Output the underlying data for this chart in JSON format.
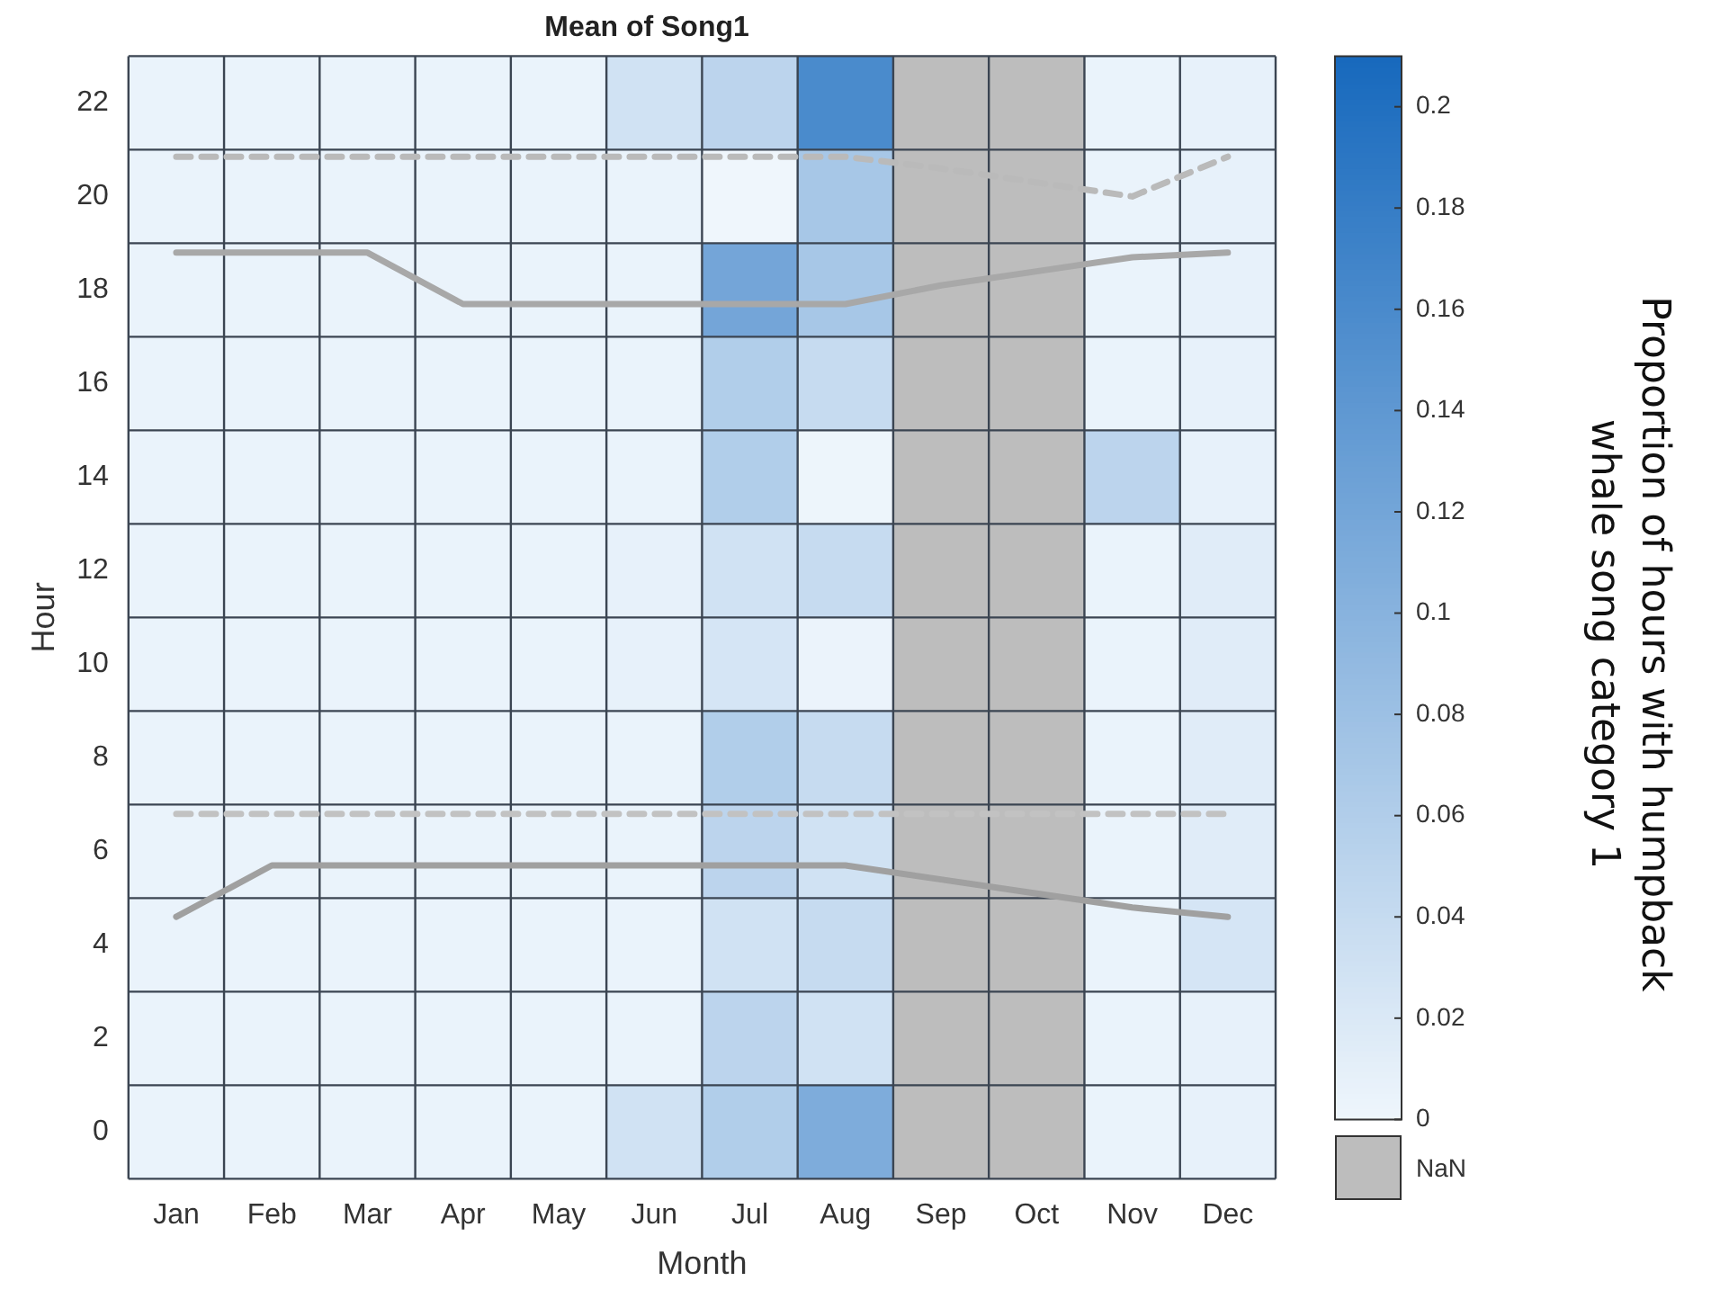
{
  "chart_data": {
    "type": "heatmap",
    "title": "Mean of Song1",
    "xlabel": "Month",
    "ylabel": "Hour",
    "clabel": "Proportion of hours with humpback whale song category 1",
    "categories": [
      "Jan",
      "Feb",
      "Mar",
      "Apr",
      "May",
      "Jun",
      "Jul",
      "Aug",
      "Sep",
      "Oct",
      "Nov",
      "Dec"
    ],
    "yticks": [
      0,
      2,
      4,
      6,
      8,
      10,
      12,
      14,
      16,
      18,
      20,
      22
    ],
    "cells": [
      [
        0.005,
        0.005,
        0.005,
        0.005,
        0.005,
        0.03,
        0.05,
        0.16,
        null,
        null,
        0.005,
        0.008
      ],
      [
        0.005,
        0.005,
        0.005,
        0.005,
        0.005,
        0.005,
        0.0,
        0.07,
        null,
        null,
        0.005,
        0.008
      ],
      [
        0.005,
        0.005,
        0.005,
        0.005,
        0.005,
        0.005,
        0.12,
        0.07,
        null,
        null,
        0.005,
        0.008
      ],
      [
        0.005,
        0.005,
        0.005,
        0.005,
        0.005,
        0.005,
        0.06,
        0.04,
        null,
        null,
        0.005,
        0.008
      ],
      [
        0.005,
        0.005,
        0.005,
        0.005,
        0.005,
        0.005,
        0.06,
        0.002,
        null,
        null,
        0.05,
        0.008
      ],
      [
        0.005,
        0.005,
        0.005,
        0.005,
        0.005,
        0.008,
        0.03,
        0.04,
        null,
        null,
        0.005,
        0.015
      ],
      [
        0.005,
        0.005,
        0.005,
        0.005,
        0.005,
        0.008,
        0.025,
        0.004,
        null,
        null,
        0.005,
        0.015
      ],
      [
        0.005,
        0.005,
        0.005,
        0.005,
        0.005,
        0.005,
        0.06,
        0.04,
        null,
        null,
        0.005,
        0.015
      ],
      [
        0.005,
        0.005,
        0.005,
        0.005,
        0.005,
        0.005,
        0.05,
        0.03,
        null,
        null,
        0.005,
        0.015
      ],
      [
        0.005,
        0.005,
        0.005,
        0.005,
        0.005,
        0.005,
        0.03,
        0.04,
        null,
        null,
        0.005,
        0.025
      ],
      [
        0.005,
        0.005,
        0.005,
        0.005,
        0.005,
        0.005,
        0.05,
        0.03,
        null,
        null,
        0.005,
        0.008
      ],
      [
        0.005,
        0.005,
        0.005,
        0.005,
        0.005,
        0.03,
        0.06,
        0.11,
        null,
        null,
        0.005,
        0.008
      ]
    ],
    "clim": [
      0,
      0.21
    ],
    "cticks": [
      0,
      0.02,
      0.04,
      0.06,
      0.08,
      0.1,
      0.12,
      0.14,
      0.16,
      0.18,
      0.2
    ],
    "colors": [
      "#eff6fc",
      "#1769bd",
      "#bdbdbd"
    ],
    "annotations": [
      "NaN"
    ],
    "ylim": [
      -1,
      23
    ],
    "series": [
      {
        "type": "line",
        "color": "#a8a8a8",
        "line_style": "solid",
        "values": [
          18.8,
          18.8,
          18.8,
          17.7,
          17.7,
          17.7,
          17.7,
          17.7,
          18.1,
          18.4,
          18.7,
          18.8
        ]
      },
      {
        "type": "line",
        "color": "#bababa",
        "line_style": "dashed",
        "values": [
          20.85,
          20.85,
          20.85,
          20.85,
          20.85,
          20.85,
          20.85,
          20.85,
          20.6,
          20.3,
          20.0,
          20.85
        ]
      },
      {
        "type": "line",
        "color": "#a0a0a0",
        "line_style": "solid",
        "values": [
          4.6,
          5.7,
          5.7,
          5.7,
          5.7,
          5.7,
          5.7,
          5.7,
          5.4,
          5.1,
          4.8,
          4.6
        ]
      },
      {
        "type": "line",
        "color": "#c2c2c2",
        "line_style": "dashed",
        "values": [
          6.8,
          6.8,
          6.8,
          6.8,
          6.8,
          6.8,
          6.8,
          6.8,
          6.8,
          6.8,
          6.8,
          6.8
        ]
      }
    ]
  }
}
